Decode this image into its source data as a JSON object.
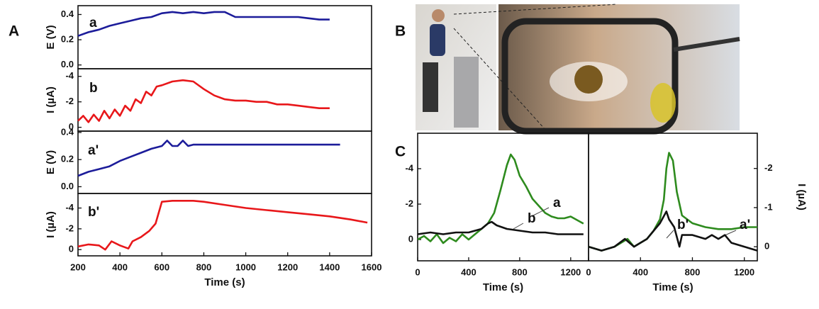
{
  "panel_labels": [
    "A",
    "B",
    "C"
  ],
  "chart_data": [
    {
      "type": "line",
      "ylabel": "E (V)",
      "xlim": [
        200,
        1600
      ],
      "ylim": [
        -0.03,
        0.47
      ],
      "yticks": [
        {
          "value": 0,
          "label": "0.0"
        },
        0.2,
        0.4
      ],
      "series": [
        {
          "name": "a",
          "color": "#1c1c9a",
          "x": [
            200,
            250,
            300,
            350,
            400,
            450,
            500,
            550,
            600,
            650,
            700,
            750,
            800,
            850,
            900,
            950,
            1000,
            1050,
            1100,
            1150,
            1200,
            1250,
            1300,
            1350,
            1400
          ],
          "values": [
            0.23,
            0.26,
            0.28,
            0.31,
            0.33,
            0.35,
            0.37,
            0.38,
            0.41,
            0.42,
            0.41,
            0.42,
            0.41,
            0.42,
            0.42,
            0.38,
            0.38,
            0.38,
            0.38,
            0.38,
            0.38,
            0.38,
            0.37,
            0.36,
            0.36
          ]
        }
      ]
    },
    {
      "type": "line",
      "ylabel": "I (µA)",
      "xlim": [
        200,
        1600
      ],
      "ylim": [
        0.3,
        -4.6
      ],
      "yticks": [
        0,
        -2,
        -4
      ],
      "series": [
        {
          "name": "b",
          "color": "#e8171a",
          "x": [
            200,
            225,
            250,
            275,
            300,
            325,
            350,
            375,
            400,
            425,
            450,
            475,
            500,
            525,
            550,
            575,
            600,
            650,
            700,
            750,
            800,
            850,
            900,
            950,
            1000,
            1050,
            1100,
            1150,
            1200,
            1250,
            1300,
            1350,
            1400
          ],
          "values": [
            -0.5,
            -0.9,
            -0.4,
            -1.0,
            -0.5,
            -1.3,
            -0.7,
            -1.4,
            -0.9,
            -1.7,
            -1.3,
            -2.2,
            -1.9,
            -2.8,
            -2.5,
            -3.2,
            -3.3,
            -3.6,
            -3.7,
            -3.6,
            -3.0,
            -2.5,
            -2.2,
            -2.1,
            -2.1,
            -2.0,
            -2.0,
            -1.8,
            -1.8,
            -1.7,
            -1.6,
            -1.5,
            -1.5
          ]
        }
      ]
    },
    {
      "type": "line",
      "ylabel": "E (V)",
      "xlim": [
        200,
        1600
      ],
      "ylim": [
        -0.05,
        0.41
      ],
      "yticks": [
        {
          "value": 0,
          "label": "0.0"
        },
        0.2,
        0.4
      ],
      "series": [
        {
          "name": "a'",
          "color": "#1c1c9a",
          "x": [
            200,
            250,
            300,
            350,
            400,
            450,
            500,
            550,
            600,
            625,
            650,
            675,
            700,
            725,
            750,
            800,
            850,
            900,
            1000,
            1100,
            1200,
            1300,
            1400,
            1450
          ],
          "values": [
            0.08,
            0.11,
            0.13,
            0.15,
            0.19,
            0.22,
            0.25,
            0.28,
            0.3,
            0.34,
            0.3,
            0.3,
            0.34,
            0.3,
            0.31,
            0.31,
            0.31,
            0.31,
            0.31,
            0.31,
            0.31,
            0.31,
            0.31,
            0.31
          ]
        }
      ]
    },
    {
      "type": "line",
      "ylabel": "I (µA)",
      "xlabel": "Time (s)",
      "xlim": [
        200,
        1600
      ],
      "xticks": [
        200,
        400,
        600,
        800,
        1000,
        1200,
        1400,
        1600
      ],
      "ylim": [
        0.6,
        -5.4
      ],
      "yticks": [
        0,
        -2,
        -4
      ],
      "series": [
        {
          "name": "b'",
          "color": "#e8171a",
          "x": [
            200,
            250,
            300,
            330,
            360,
            400,
            440,
            460,
            500,
            540,
            570,
            600,
            650,
            700,
            750,
            800,
            900,
            1000,
            1100,
            1200,
            1300,
            1400,
            1500,
            1580
          ],
          "values": [
            -0.3,
            -0.5,
            -0.4,
            0,
            -0.8,
            -0.4,
            -0.1,
            -0.8,
            -1.2,
            -1.8,
            -2.5,
            -4.6,
            -4.7,
            -4.7,
            -4.7,
            -4.6,
            -4.3,
            -4.0,
            -3.8,
            -3.6,
            -3.4,
            -3.2,
            -2.9,
            -2.6
          ]
        }
      ]
    },
    {
      "type": "line",
      "xlabel": "Time (s)",
      "xlim": [
        0,
        1340
      ],
      "xticks": [
        0,
        400,
        800,
        1200
      ],
      "ylim": [
        1.2,
        -6
      ],
      "yticks": [
        0,
        -2,
        -4
      ],
      "series": [
        {
          "name": "a",
          "color": "#2e8b1e",
          "x": [
            0,
            50,
            100,
            150,
            200,
            250,
            300,
            350,
            400,
            450,
            500,
            550,
            600,
            650,
            700,
            730,
            760,
            800,
            850,
            900,
            950,
            1000,
            1050,
            1100,
            1150,
            1200,
            1250,
            1300
          ],
          "values": [
            0,
            -0.2,
            0.1,
            -0.3,
            0.2,
            -0.1,
            0.1,
            -0.3,
            0,
            -0.3,
            -0.6,
            -0.9,
            -1.5,
            -2.8,
            -4.2,
            -4.8,
            -4.5,
            -3.6,
            -3.0,
            -2.3,
            -1.9,
            -1.5,
            -1.3,
            -1.2,
            -1.2,
            -1.3,
            -1.1,
            -0.9
          ]
        },
        {
          "name": "b",
          "color": "#111111",
          "x": [
            0,
            100,
            200,
            300,
            400,
            500,
            550,
            580,
            620,
            700,
            800,
            900,
            1000,
            1100,
            1200,
            1300
          ],
          "values": [
            -0.3,
            -0.4,
            -0.3,
            -0.4,
            -0.4,
            -0.6,
            -0.9,
            -1.0,
            -0.8,
            -0.6,
            -0.5,
            -0.4,
            -0.4,
            -0.3,
            -0.3,
            -0.3
          ]
        }
      ]
    },
    {
      "type": "line",
      "xlabel": "Time (s)",
      "y2label": "I (µA)",
      "xlim": [
        0,
        1300
      ],
      "xticks": [
        0,
        400,
        800,
        1200
      ],
      "y2lim": [
        0.36,
        -2.9
      ],
      "y2ticks": [
        0,
        -1,
        -2
      ],
      "series": [
        {
          "name": "a'",
          "color": "#2e8b1e",
          "axis": "y2",
          "x": [
            0,
            100,
            200,
            250,
            300,
            350,
            400,
            450,
            500,
            550,
            580,
            600,
            620,
            650,
            680,
            720,
            800,
            900,
            1000,
            1100,
            1200,
            1300
          ],
          "values": [
            0,
            0.1,
            0,
            -0.1,
            -0.2,
            0,
            -0.1,
            -0.2,
            -0.4,
            -0.7,
            -1.2,
            -2.0,
            -2.4,
            -2.2,
            -1.4,
            -0.8,
            -0.6,
            -0.5,
            -0.45,
            -0.45,
            -0.5,
            -0.5
          ]
        },
        {
          "name": "b'",
          "color": "#111111",
          "axis": "y2",
          "x": [
            0,
            100,
            200,
            280,
            350,
            400,
            450,
            500,
            550,
            600,
            620,
            660,
            700,
            720,
            800,
            900,
            950,
            1000,
            1050,
            1100,
            1200,
            1300
          ],
          "values": [
            0,
            0.1,
            0,
            -0.2,
            0,
            -0.1,
            -0.2,
            -0.4,
            -0.6,
            -0.9,
            -0.7,
            -0.5,
            0,
            -0.3,
            -0.3,
            -0.2,
            -0.3,
            -0.2,
            -0.3,
            -0.1,
            0,
            0.1
          ]
        }
      ]
    }
  ]
}
